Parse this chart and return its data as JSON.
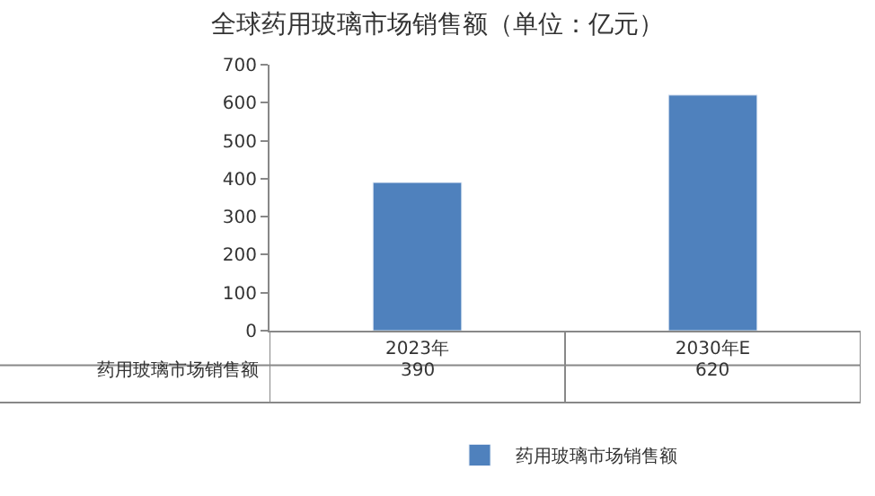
{
  "chart_data": {
    "type": "bar",
    "title": "全球药用玻璃市场销售额（单位：亿元）",
    "categories": [
      "2023年",
      "2030年E"
    ],
    "series": [
      {
        "name": "药用玻璃市场销售额",
        "color": "#4f81bd",
        "values": [
          390,
          620
        ]
      }
    ],
    "ylim": [
      0,
      700
    ],
    "yticks": [
      0,
      100,
      200,
      300,
      400,
      500,
      600,
      700
    ],
    "grid": false,
    "legend": "bottom",
    "data_labels": true
  }
}
